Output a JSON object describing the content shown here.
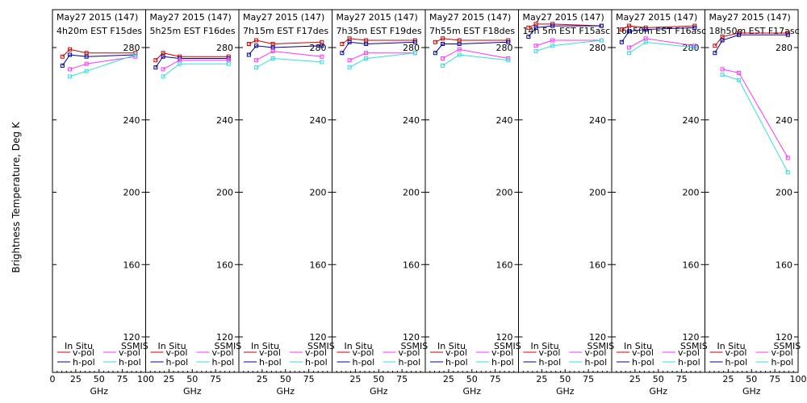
{
  "chart_data": {
    "type": "line",
    "ylabel": "Brightness Temperature, Deg K",
    "xlabel": "GHz",
    "ylim": [
      110,
      290
    ],
    "xlim": [
      0,
      100
    ],
    "yticks": [
      120,
      160,
      200,
      240,
      280
    ],
    "xticks": [
      0,
      25,
      50,
      75,
      100
    ],
    "xtick_labels": [
      "0",
      "25",
      "50",
      "75",
      "100"
    ],
    "legend": {
      "insitu_label": "In Situ",
      "ssmis_label": "SSMIS",
      "vpol_label": "v-pol",
      "hpol_label": "h-pol"
    },
    "colors": {
      "insitu_v": "#cc0000",
      "insitu_h": "#000099",
      "ssmis_v": "#ff33ff",
      "ssmis_h": "#33dddd"
    },
    "frequencies": [
      10.7,
      18.7,
      36.5,
      89.0
    ],
    "panels": [
      {
        "date": "May27 2015 (147)",
        "info": "4h20m EST F15des",
        "series": [
          {
            "name": "In Situ v-pol",
            "freq": [
              10.7,
              18.7,
              36.5,
              89.0
            ],
            "values": [
              275,
              279,
              277,
              277
            ]
          },
          {
            "name": "In Situ h-pol",
            "freq": [
              10.7,
              18.7,
              36.5,
              89.0
            ],
            "values": [
              270,
              276,
              275,
              276
            ]
          },
          {
            "name": "SSMIS v-pol",
            "freq": [
              18.7,
              36.5,
              89.0
            ],
            "values": [
              268,
              271,
              275
            ]
          },
          {
            "name": "SSMIS h-pol",
            "freq": [
              18.7,
              36.5,
              89.0
            ],
            "values": [
              264,
              267,
              276
            ]
          }
        ]
      },
      {
        "date": "May27 2015 (147)",
        "info": "5h25m EST F16des",
        "series": [
          {
            "name": "In Situ v-pol",
            "freq": [
              10.7,
              18.7,
              36.5,
              89.0
            ],
            "values": [
              273,
              277,
              275,
              275
            ]
          },
          {
            "name": "In Situ h-pol",
            "freq": [
              10.7,
              18.7,
              36.5,
              89.0
            ],
            "values": [
              269,
              275,
              274,
              274
            ]
          },
          {
            "name": "SSMIS v-pol",
            "freq": [
              18.7,
              36.5,
              89.0
            ],
            "values": [
              268,
              273,
              273
            ]
          },
          {
            "name": "SSMIS h-pol",
            "freq": [
              18.7,
              36.5,
              89.0
            ],
            "values": [
              264,
              271,
              271
            ]
          }
        ]
      },
      {
        "date": "May27 2015 (147)",
        "info": "7h15m EST F17des",
        "series": [
          {
            "name": "In Situ v-pol",
            "freq": [
              10.7,
              18.7,
              36.5,
              89.0
            ],
            "values": [
              282,
              284,
              282,
              283
            ]
          },
          {
            "name": "In Situ h-pol",
            "freq": [
              10.7,
              18.7,
              36.5,
              89.0
            ],
            "values": [
              276,
              281,
              280,
              281
            ]
          },
          {
            "name": "SSMIS v-pol",
            "freq": [
              18.7,
              36.5,
              89.0
            ],
            "values": [
              273,
              278,
              275
            ]
          },
          {
            "name": "SSMIS h-pol",
            "freq": [
              18.7,
              36.5,
              89.0
            ],
            "values": [
              269,
              274,
              272
            ]
          }
        ]
      },
      {
        "date": "May27 2015 (147)",
        "info": "7h35m EST F19des",
        "series": [
          {
            "name": "In Situ v-pol",
            "freq": [
              10.7,
              18.7,
              36.5,
              89.0
            ],
            "values": [
              282,
              285,
              284,
              284
            ]
          },
          {
            "name": "In Situ h-pol",
            "freq": [
              10.7,
              18.7,
              36.5,
              89.0
            ],
            "values": [
              277,
              283,
              282,
              283
            ]
          },
          {
            "name": "SSMIS v-pol",
            "freq": [
              18.7,
              36.5,
              89.0
            ],
            "values": [
              273,
              277,
              277
            ]
          },
          {
            "name": "SSMIS h-pol",
            "freq": [
              18.7,
              36.5,
              89.0
            ],
            "values": [
              269,
              274,
              277
            ]
          }
        ]
      },
      {
        "date": "May27 2015 (147)",
        "info": "7h55m EST F18des",
        "series": [
          {
            "name": "In Situ v-pol",
            "freq": [
              10.7,
              18.7,
              36.5,
              89.0
            ],
            "values": [
              283,
              285,
              284,
              284
            ]
          },
          {
            "name": "In Situ h-pol",
            "freq": [
              10.7,
              18.7,
              36.5,
              89.0
            ],
            "values": [
              277,
              282,
              282,
              283
            ]
          },
          {
            "name": "SSMIS v-pol",
            "freq": [
              18.7,
              36.5,
              89.0
            ],
            "values": [
              274,
              279,
              274
            ]
          },
          {
            "name": "SSMIS h-pol",
            "freq": [
              18.7,
              36.5,
              89.0
            ],
            "values": [
              270,
              276,
              273
            ]
          }
        ]
      },
      {
        "date": "May27 2015 (147)",
        "info": "14h 5m EST F15asc",
        "series": [
          {
            "name": "In Situ v-pol",
            "freq": [
              10.7,
              18.7,
              36.5,
              89.0
            ],
            "values": [
              291,
              293,
              293,
              292
            ]
          },
          {
            "name": "In Situ h-pol",
            "freq": [
              10.7,
              18.7,
              36.5,
              89.0
            ],
            "values": [
              286,
              291,
              292,
              292
            ]
          },
          {
            "name": "SSMIS v-pol",
            "freq": [
              18.7,
              36.5,
              89.0
            ],
            "values": [
              281,
              284,
              284
            ]
          },
          {
            "name": "SSMIS h-pol",
            "freq": [
              18.7,
              36.5,
              89.0
            ],
            "values": [
              278,
              281,
              284
            ]
          }
        ]
      },
      {
        "date": "May27 2015 (147)",
        "info": "16h50m EST F16asc",
        "series": [
          {
            "name": "In Situ v-pol",
            "freq": [
              10.7,
              18.7,
              36.5,
              89.0
            ],
            "values": [
              290,
              292,
              291,
              292
            ]
          },
          {
            "name": "In Situ h-pol",
            "freq": [
              10.7,
              18.7,
              36.5,
              89.0
            ],
            "values": [
              283,
              289,
              290,
              291
            ]
          },
          {
            "name": "SSMIS v-pol",
            "freq": [
              18.7,
              36.5,
              89.0
            ],
            "values": [
              280,
              285,
              281
            ]
          },
          {
            "name": "SSMIS h-pol",
            "freq": [
              18.7,
              36.5,
              89.0
            ],
            "values": [
              277,
              283,
              280
            ]
          }
        ]
      },
      {
        "date": "May27 2015 (147)",
        "info": "18h50m EST F17asc",
        "series": [
          {
            "name": "In Situ v-pol",
            "freq": [
              10.7,
              18.7,
              36.5,
              89.0
            ],
            "values": [
              281,
              286,
              288,
              288
            ]
          },
          {
            "name": "In Situ h-pol",
            "freq": [
              10.7,
              18.7,
              36.5,
              89.0
            ],
            "values": [
              277,
              284,
              287,
              287
            ]
          },
          {
            "name": "SSMIS v-pol",
            "freq": [
              18.7,
              36.5,
              89.0
            ],
            "values": [
              268,
              266,
              219
            ]
          },
          {
            "name": "SSMIS h-pol",
            "freq": [
              18.7,
              36.5,
              89.0
            ],
            "values": [
              265,
              262,
              211
            ]
          }
        ]
      }
    ]
  }
}
